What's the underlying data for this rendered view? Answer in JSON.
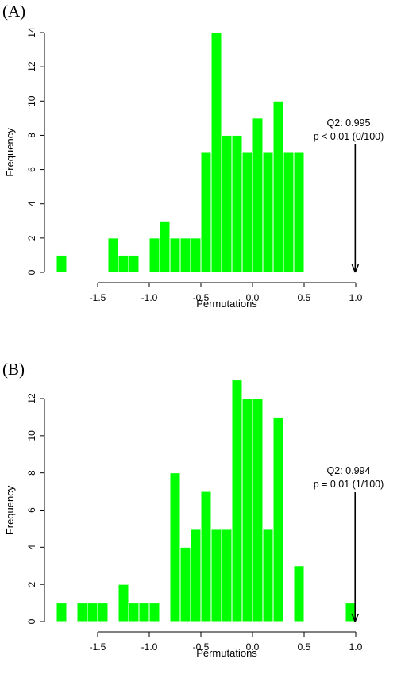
{
  "figure": {
    "panels": [
      {
        "label": "(A)",
        "annotation": {
          "line1": "Q2: 0.995",
          "line2": "p < 0.01 (0/100)"
        },
        "chart": {
          "type": "bar",
          "xlabel": "Permutations",
          "ylabel": "Frequency",
          "xlim": [
            -1.9,
            1.0
          ],
          "ylim": [
            0,
            14
          ],
          "xticks": [
            "-1.5",
            "-1.0",
            "-0.5",
            "0.0",
            "0.5",
            "1.0"
          ],
          "yticks": [
            "0",
            "2",
            "4",
            "6",
            "8",
            "10",
            "12",
            "14"
          ],
          "bins": [
            {
              "x0": -1.9,
              "x1": -1.8,
              "count": 1
            },
            {
              "x0": -1.4,
              "x1": -1.3,
              "count": 2
            },
            {
              "x0": -1.3,
              "x1": -1.2,
              "count": 1
            },
            {
              "x0": -1.2,
              "x1": -1.1,
              "count": 1
            },
            {
              "x0": -1.0,
              "x1": -0.9,
              "count": 2
            },
            {
              "x0": -0.9,
              "x1": -0.8,
              "count": 3
            },
            {
              "x0": -0.8,
              "x1": -0.7,
              "count": 2
            },
            {
              "x0": -0.7,
              "x1": -0.6,
              "count": 2
            },
            {
              "x0": -0.6,
              "x1": -0.5,
              "count": 2
            },
            {
              "x0": -0.5,
              "x1": -0.4,
              "count": 7
            },
            {
              "x0": -0.4,
              "x1": -0.3,
              "count": 14
            },
            {
              "x0": -0.3,
              "x1": -0.2,
              "count": 8
            },
            {
              "x0": -0.2,
              "x1": -0.1,
              "count": 8
            },
            {
              "x0": -0.1,
              "x1": 0.0,
              "count": 7
            },
            {
              "x0": 0.0,
              "x1": 0.1,
              "count": 9
            },
            {
              "x0": 0.1,
              "x1": 0.2,
              "count": 7
            },
            {
              "x0": 0.2,
              "x1": 0.3,
              "count": 10
            },
            {
              "x0": 0.3,
              "x1": 0.4,
              "count": 7
            },
            {
              "x0": 0.4,
              "x1": 0.5,
              "count": 7
            }
          ],
          "marker": {
            "value": 0.995
          },
          "bar_color": "#00ff00"
        }
      },
      {
        "label": "(B)",
        "annotation": {
          "line1": "Q2: 0.994",
          "line2": "p = 0.01 (1/100)"
        },
        "chart": {
          "type": "bar",
          "xlabel": "Permutations",
          "ylabel": "Frequency",
          "xlim": [
            -1.9,
            1.0
          ],
          "ylim": [
            0,
            12
          ],
          "xticks": [
            "-1.5",
            "-1.0",
            "-0.5",
            "0.0",
            "0.5",
            "1.0"
          ],
          "yticks": [
            "0",
            "2",
            "4",
            "6",
            "8",
            "10",
            "12"
          ],
          "bins": [
            {
              "x0": -1.9,
              "x1": -1.8,
              "count": 1
            },
            {
              "x0": -1.7,
              "x1": -1.6,
              "count": 1
            },
            {
              "x0": -1.6,
              "x1": -1.5,
              "count": 1
            },
            {
              "x0": -1.5,
              "x1": -1.4,
              "count": 1
            },
            {
              "x0": -1.3,
              "x1": -1.2,
              "count": 2
            },
            {
              "x0": -1.2,
              "x1": -1.1,
              "count": 1
            },
            {
              "x0": -1.1,
              "x1": -1.0,
              "count": 1
            },
            {
              "x0": -1.0,
              "x1": -0.9,
              "count": 1
            },
            {
              "x0": -0.8,
              "x1": -0.7,
              "count": 8
            },
            {
              "x0": -0.7,
              "x1": -0.6,
              "count": 4
            },
            {
              "x0": -0.6,
              "x1": -0.5,
              "count": 5
            },
            {
              "x0": -0.5,
              "x1": -0.4,
              "count": 7
            },
            {
              "x0": -0.4,
              "x1": -0.3,
              "count": 5
            },
            {
              "x0": -0.3,
              "x1": -0.2,
              "count": 5
            },
            {
              "x0": -0.2,
              "x1": -0.1,
              "count": 13
            },
            {
              "x0": -0.1,
              "x1": 0.0,
              "count": 12
            },
            {
              "x0": 0.0,
              "x1": 0.1,
              "count": 12
            },
            {
              "x0": 0.1,
              "x1": 0.2,
              "count": 5
            },
            {
              "x0": 0.2,
              "x1": 0.3,
              "count": 11
            },
            {
              "x0": 0.4,
              "x1": 0.5,
              "count": 3
            },
            {
              "x0": 0.9,
              "x1": 1.0,
              "count": 1
            }
          ],
          "marker": {
            "value": 0.994
          },
          "bar_color": "#00ff00"
        }
      }
    ]
  },
  "chart_data": [
    {
      "type": "bar",
      "panel": "(A)",
      "title": "",
      "xlabel": "Permutations",
      "ylabel": "Frequency",
      "xlim": [
        -1.9,
        1.0
      ],
      "ylim": [
        0,
        14
      ],
      "bin_width": 0.1,
      "categories": [
        "-1.9 to -1.8",
        "-1.4 to -1.3",
        "-1.3 to -1.2",
        "-1.2 to -1.1",
        "-1.0 to -0.9",
        "-0.9 to -0.8",
        "-0.8 to -0.7",
        "-0.7 to -0.6",
        "-0.6 to -0.5",
        "-0.5 to -0.4",
        "-0.4 to -0.3",
        "-0.3 to -0.2",
        "-0.2 to -0.1",
        "-0.1 to 0.0",
        "0.0 to 0.1",
        "0.1 to 0.2",
        "0.2 to 0.3",
        "0.3 to 0.4",
        "0.4 to 0.5"
      ],
      "values": [
        1,
        2,
        1,
        1,
        2,
        3,
        2,
        2,
        2,
        7,
        14,
        8,
        8,
        7,
        9,
        7,
        10,
        7,
        7
      ],
      "annotations": [
        "Q2: 0.995",
        "p < 0.01 (0/100)"
      ],
      "observed_value": 0.995,
      "grid": false,
      "legend": "none"
    },
    {
      "type": "bar",
      "panel": "(B)",
      "title": "",
      "xlabel": "Permutations",
      "ylabel": "Frequency",
      "xlim": [
        -1.9,
        1.0
      ],
      "ylim": [
        0,
        12
      ],
      "bin_width": 0.1,
      "categories": [
        "-1.9 to -1.8",
        "-1.7 to -1.6",
        "-1.6 to -1.5",
        "-1.5 to -1.4",
        "-1.3 to -1.2",
        "-1.2 to -1.1",
        "-1.1 to -1.0",
        "-1.0 to -0.9",
        "-0.8 to -0.7",
        "-0.7 to -0.6",
        "-0.6 to -0.5",
        "-0.5 to -0.4",
        "-0.4 to -0.3",
        "-0.3 to -0.2",
        "-0.2 to -0.1",
        "-0.1 to 0.0",
        "0.0 to 0.1",
        "0.1 to 0.2",
        "0.2 to 0.3",
        "0.4 to 0.5",
        "0.9 to 1.0"
      ],
      "values": [
        1,
        1,
        1,
        1,
        2,
        1,
        1,
        1,
        8,
        4,
        5,
        7,
        5,
        5,
        13,
        12,
        12,
        5,
        11,
        3,
        1
      ],
      "annotations": [
        "Q2: 0.994",
        "p = 0.01 (1/100)"
      ],
      "observed_value": 0.994,
      "grid": false,
      "legend": "none"
    }
  ]
}
